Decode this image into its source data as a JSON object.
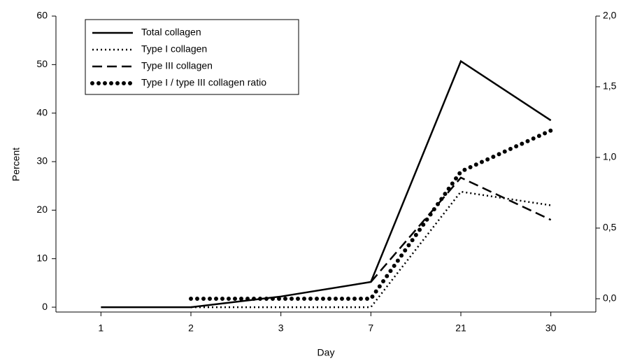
{
  "chart_data": {
    "type": "line",
    "x_label": "Day",
    "y_label": "Percent",
    "categories": [
      "1",
      "2",
      "3",
      "7",
      "21",
      "30"
    ],
    "ylim": [
      -1,
      60
    ],
    "yticks": [
      0,
      10,
      20,
      30,
      40,
      50,
      60
    ],
    "y2lim": [
      -0.094,
      2.0
    ],
    "y2ticks": [
      {
        "value": 0,
        "label": "0,0"
      },
      {
        "value": 0.5,
        "label": "0,5"
      },
      {
        "value": 1,
        "label": "1,0"
      },
      {
        "value": 1.5,
        "label": "1,5"
      },
      {
        "value": 2,
        "label": "2,0"
      }
    ],
    "series": [
      {
        "name": "Total collagen",
        "color": "#000000",
        "style": "solid",
        "values": [
          0,
          0,
          2.2,
          5.2,
          50.7,
          38.5
        ]
      },
      {
        "name": "Type I collagen",
        "color": "#000000",
        "style": "dotted",
        "values": [
          null,
          0,
          0,
          0,
          23.8,
          21
        ]
      },
      {
        "name": "Type III collagen",
        "color": "#000000",
        "style": "dashed",
        "values": [
          null,
          null,
          null,
          5.2,
          26.7,
          18
        ]
      },
      {
        "name": "Type I / type III collagen ratio",
        "color": "#000000",
        "style": "bigdot",
        "axis": "y2",
        "values": [
          null,
          0,
          0,
          0,
          0.9,
          1.19
        ]
      }
    ]
  }
}
